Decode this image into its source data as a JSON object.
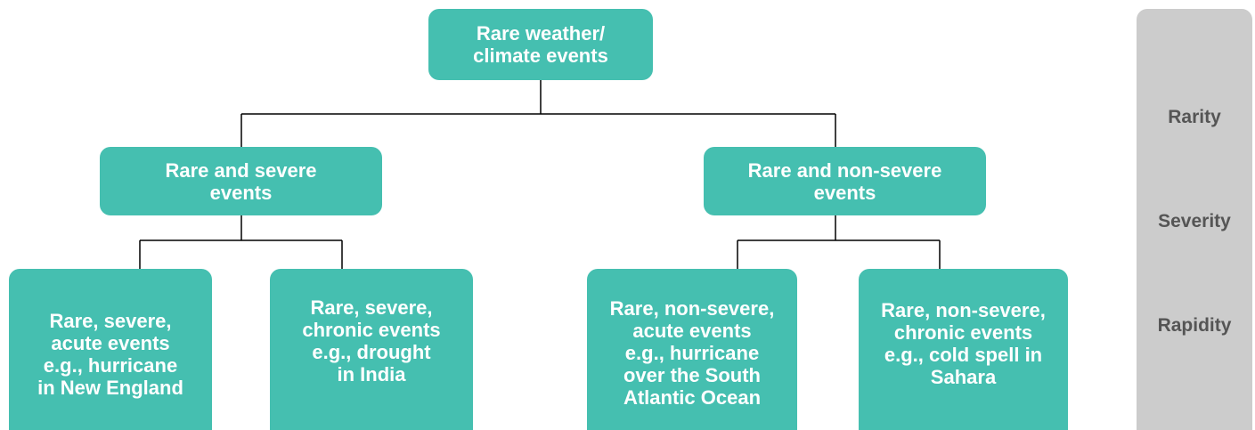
{
  "nodes": [
    {
      "lines": [
        "Rare weather/",
        "climate events"
      ]
    },
    {
      "lines": [
        "Rare and severe",
        "events"
      ]
    },
    {
      "lines": [
        "Rare and non-severe",
        "events"
      ]
    },
    {
      "lines": [
        "Rare, severe,",
        "acute events",
        "e.g., hurricane",
        "in New England"
      ]
    },
    {
      "lines": [
        "Rare, severe,",
        "chronic events",
        "e.g., drought",
        "in India"
      ]
    },
    {
      "lines": [
        "Rare, non-severe,",
        "acute events",
        "e.g., hurricane",
        "over the South",
        "Atlantic Ocean"
      ]
    },
    {
      "lines": [
        "Rare, non-severe,",
        "chronic events",
        "e.g., cold spell in",
        "Sahara"
      ]
    }
  ],
  "dimensions": [
    "Rarity",
    "Severity",
    "Rapidity"
  ]
}
